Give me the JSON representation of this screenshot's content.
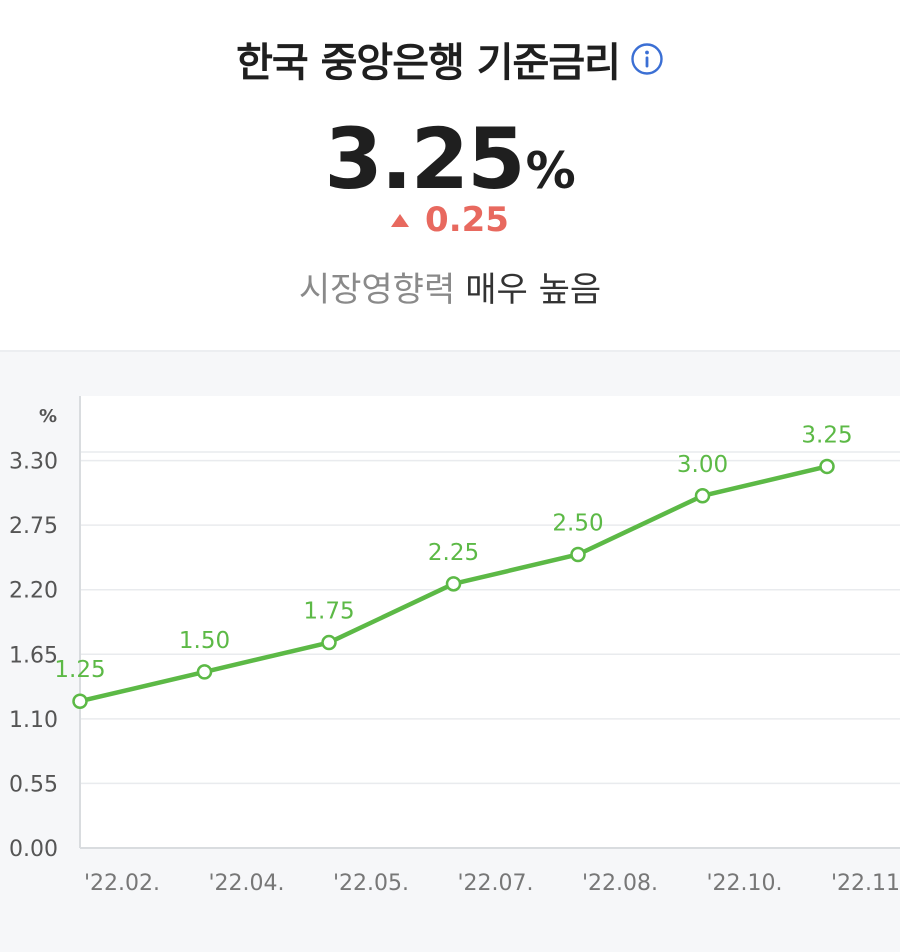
{
  "header": {
    "title": "한국 중앙은행 기준금리",
    "value": "3.25",
    "unit": "%",
    "change": "0.25",
    "impact_label": "시장영향력",
    "impact_value": "매우 높음"
  },
  "colors": {
    "line": "#5cb946",
    "up": "#e8695f",
    "panel": "#f6f7f9",
    "plot": "#ffffff",
    "info": "#3b6fd4"
  },
  "chart_data": {
    "type": "line",
    "unit_label": "%",
    "x": [
      "'22.02.",
      "'22.04.",
      "'22.05.",
      "'22.07.",
      "'22.08.",
      "'22.10.",
      "'22.11."
    ],
    "values": [
      1.25,
      1.5,
      1.75,
      2.25,
      2.5,
      3.0,
      3.25
    ],
    "data_labels": [
      "1.25",
      "1.50",
      "1.75",
      "2.25",
      "2.50",
      "3.00",
      "3.25"
    ],
    "y_ticks": [
      0.0,
      0.55,
      1.1,
      1.65,
      2.2,
      2.75,
      3.3
    ],
    "y_tick_labels": [
      "0.00",
      "0.55",
      "1.10",
      "1.65",
      "2.20",
      "2.75",
      "3.30"
    ],
    "ylim": [
      0,
      3.85
    ],
    "grid": true
  }
}
